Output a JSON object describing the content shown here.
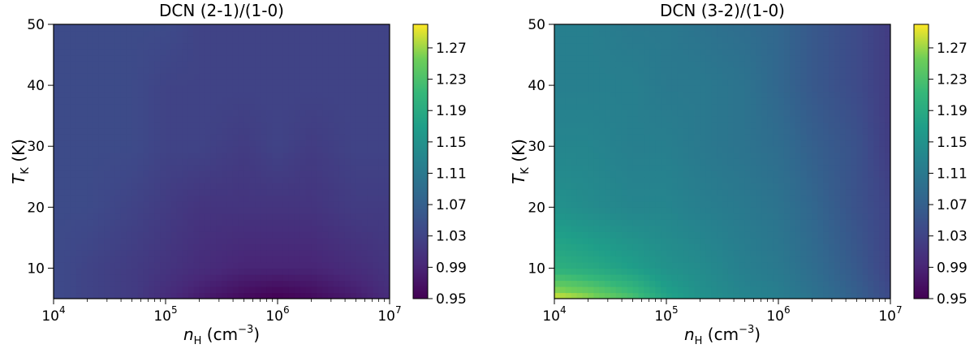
{
  "chart_data": [
    {
      "type": "heatmap",
      "title": "DCN (2-1)/(1-0)",
      "xlabel": {
        "symbol": "n",
        "sub": "H",
        "unit": " (cm",
        "sup": "−3",
        "close": ")"
      },
      "ylabel": {
        "symbol": "T",
        "sub": "K",
        "unit": " (K)"
      },
      "x_scale": "log",
      "xlim": [
        10000,
        10000000
      ],
      "ylim": [
        5,
        50
      ],
      "x_ticks": [
        {
          "base": "10",
          "exp": "4",
          "value": 10000
        },
        {
          "base": "10",
          "exp": "5",
          "value": 100000
        },
        {
          "base": "10",
          "exp": "6",
          "value": 1000000
        },
        {
          "base": "10",
          "exp": "7",
          "value": 10000000
        }
      ],
      "y_ticks": [
        "10",
        "20",
        "30",
        "40",
        "50"
      ],
      "x": [
        10000,
        20000,
        50000,
        100000,
        200000,
        500000,
        1000000,
        2000000,
        5000000,
        10000000
      ],
      "y": [
        5,
        10,
        20,
        30,
        40,
        50
      ],
      "z": [
        [
          1.04,
          1.03,
          1.02,
          1.0,
          0.98,
          0.96,
          0.95,
          0.96,
          0.98,
          1.0
        ],
        [
          1.04,
          1.03,
          1.02,
          1.01,
          1.0,
          0.99,
          0.99,
          0.99,
          1.0,
          1.01
        ],
        [
          1.04,
          1.04,
          1.03,
          1.02,
          1.01,
          1.01,
          1.01,
          1.01,
          1.02,
          1.02
        ],
        [
          1.04,
          1.04,
          1.04,
          1.03,
          1.03,
          1.02,
          1.03,
          1.02,
          1.03,
          1.03
        ],
        [
          1.04,
          1.04,
          1.04,
          1.03,
          1.03,
          1.03,
          1.03,
          1.03,
          1.03,
          1.03
        ],
        [
          1.04,
          1.04,
          1.04,
          1.04,
          1.03,
          1.03,
          1.03,
          1.03,
          1.03,
          1.03
        ]
      ],
      "colorbar": {
        "min": 0.95,
        "max": 1.3,
        "ticks": [
          "0.95",
          "0.99",
          "1.03",
          "1.07",
          "1.11",
          "1.15",
          "1.19",
          "1.23",
          "1.27"
        ]
      },
      "colormap": "viridis",
      "grid": false
    },
    {
      "type": "heatmap",
      "title": "DCN (3-2)/(1-0)",
      "xlabel": {
        "symbol": "n",
        "sub": "H",
        "unit": " (cm",
        "sup": "−3",
        "close": ")"
      },
      "ylabel": {
        "symbol": "T",
        "sub": "K",
        "unit": " (K)"
      },
      "x_scale": "log",
      "xlim": [
        10000,
        10000000
      ],
      "ylim": [
        5,
        50
      ],
      "x_ticks": [
        {
          "base": "10",
          "exp": "4",
          "value": 10000
        },
        {
          "base": "10",
          "exp": "5",
          "value": 100000
        },
        {
          "base": "10",
          "exp": "6",
          "value": 1000000
        },
        {
          "base": "10",
          "exp": "7",
          "value": 10000000
        }
      ],
      "y_ticks": [
        "10",
        "20",
        "30",
        "40",
        "50"
      ],
      "x": [
        10000,
        20000,
        50000,
        100000,
        200000,
        500000,
        1000000,
        2000000,
        5000000,
        10000000
      ],
      "y": [
        5,
        10,
        20,
        30,
        40,
        50
      ],
      "z": [
        [
          1.29,
          1.27,
          1.23,
          1.18,
          1.15,
          1.13,
          1.12,
          1.1,
          1.07,
          1.04
        ],
        [
          1.2,
          1.19,
          1.17,
          1.15,
          1.14,
          1.12,
          1.11,
          1.09,
          1.06,
          1.03
        ],
        [
          1.15,
          1.14,
          1.13,
          1.13,
          1.12,
          1.11,
          1.1,
          1.08,
          1.05,
          1.03
        ],
        [
          1.13,
          1.13,
          1.12,
          1.12,
          1.11,
          1.1,
          1.09,
          1.07,
          1.05,
          1.02
        ],
        [
          1.12,
          1.12,
          1.12,
          1.11,
          1.11,
          1.1,
          1.08,
          1.06,
          1.04,
          1.02
        ],
        [
          1.12,
          1.12,
          1.11,
          1.11,
          1.1,
          1.09,
          1.08,
          1.06,
          1.04,
          1.02
        ]
      ],
      "colorbar": {
        "min": 0.95,
        "max": 1.3,
        "ticks": [
          "0.95",
          "0.99",
          "1.03",
          "1.07",
          "1.11",
          "1.15",
          "1.19",
          "1.23",
          "1.27"
        ]
      },
      "colormap": "viridis",
      "grid": false
    }
  ]
}
